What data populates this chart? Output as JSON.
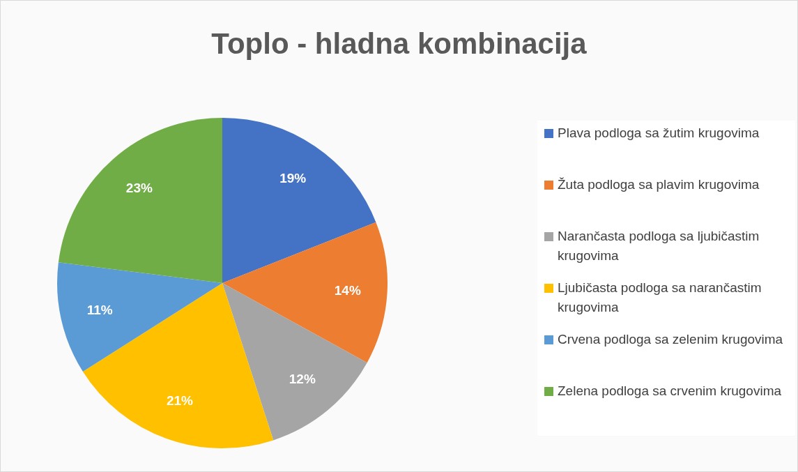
{
  "chart_data": {
    "type": "pie",
    "title": "Toplo - hladna kombinacija",
    "categories": [
      "Plava podloga sa žutim krugovima",
      "Žuta podloga sa plavim krugovima",
      "Narančasta podloga sa ljubičastim krugovima",
      "Ljubičasta podloga sa narančastim krugovima",
      "Crvena podloga sa zelenim krugovima",
      "Zelena podloga sa crvenim krugovima"
    ],
    "values": [
      19,
      14,
      12,
      21,
      11,
      23
    ],
    "colors": [
      "#4472c4",
      "#ed7d31",
      "#a5a5a5",
      "#ffc000",
      "#5b9bd5",
      "#70ad47"
    ],
    "value_labels": [
      "19%",
      "14%",
      "12%",
      "21%",
      "11%",
      "23%"
    ],
    "legend": "right"
  }
}
